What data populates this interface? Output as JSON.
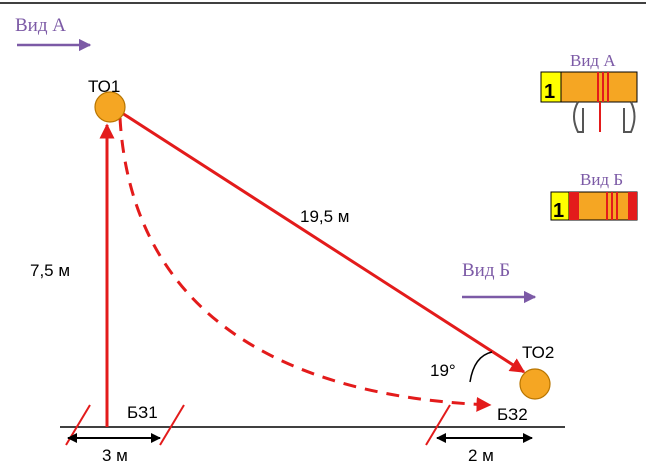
{
  "view_a": {
    "label": "Вид А"
  },
  "view_b": {
    "label": "Вид Б"
  },
  "points": {
    "to1": "ТО1",
    "to2": "ТО2",
    "bz1": "БЗ1",
    "bz2": "БЗ2"
  },
  "dimensions": {
    "height": "7,5 м",
    "diagonal": "19,5 м",
    "left_offset": "3 м",
    "right_offset": "2 м",
    "angle": "19°"
  },
  "legend": {
    "view_a_title": "Вид А",
    "view_b_title": "Вид Б",
    "marker_a": "1",
    "marker_b": "1"
  },
  "colors": {
    "red": "#e31b1b",
    "purple": "#7c5aa6",
    "orange": "#f5a623",
    "yellow": "#ffff00"
  }
}
